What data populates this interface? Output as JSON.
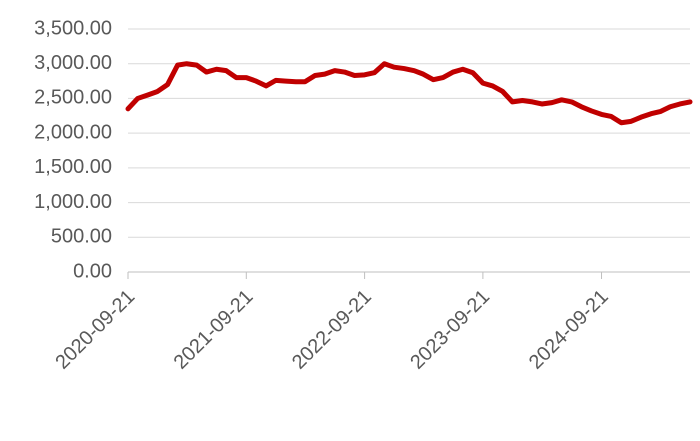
{
  "chart_data": {
    "type": "line",
    "x": [
      "2020-09-21",
      "2020-10-21",
      "2020-11-21",
      "2020-12-21",
      "2021-01-21",
      "2021-02-21",
      "2021-03-21",
      "2021-04-21",
      "2021-05-21",
      "2021-06-21",
      "2021-07-21",
      "2021-08-21",
      "2021-09-21",
      "2021-10-21",
      "2021-11-21",
      "2021-12-21",
      "2022-01-21",
      "2022-02-21",
      "2022-03-21",
      "2022-04-21",
      "2022-05-21",
      "2022-06-21",
      "2022-07-21",
      "2022-08-21",
      "2022-09-21",
      "2022-10-21",
      "2022-11-21",
      "2022-12-21",
      "2023-01-21",
      "2023-02-21",
      "2023-03-21",
      "2023-04-21",
      "2023-05-21",
      "2023-06-21",
      "2023-07-21",
      "2023-08-21",
      "2023-09-21",
      "2023-10-21",
      "2023-11-21",
      "2023-12-21",
      "2024-01-21",
      "2024-02-21",
      "2024-03-21",
      "2024-04-21",
      "2024-05-21",
      "2024-06-21",
      "2024-07-21",
      "2024-08-21",
      "2024-09-21",
      "2024-10-21",
      "2024-11-21",
      "2024-12-21",
      "2025-01-21",
      "2025-02-21",
      "2025-03-21",
      "2025-04-21",
      "2025-05-21",
      "2025-06-21"
    ],
    "series": [
      {
        "color": "#c00000",
        "values": [
          2350,
          2500,
          2550,
          2600,
          2700,
          2980,
          3000,
          2980,
          2880,
          2920,
          2900,
          2800,
          2800,
          2750,
          2680,
          2760,
          2750,
          2740,
          2740,
          2830,
          2850,
          2900,
          2880,
          2830,
          2840,
          2870,
          3000,
          2950,
          2930,
          2900,
          2850,
          2770,
          2800,
          2880,
          2920,
          2870,
          2720,
          2680,
          2600,
          2450,
          2470,
          2450,
          2420,
          2440,
          2480,
          2450,
          2380,
          2320,
          2270,
          2240,
          2150,
          2170,
          2230,
          2280,
          2310,
          2380,
          2420,
          2450
        ]
      }
    ],
    "xlim": [
      "2020-09-21",
      "2025-06-21"
    ],
    "xticks": [
      "2020-09-21",
      "2021-09-21",
      "2022-09-21",
      "2023-09-21",
      "2024-09-21"
    ],
    "ylim": [
      0,
      3500
    ],
    "yticks": [
      {
        "value": 0,
        "label": "0.00"
      },
      {
        "value": 500,
        "label": "500.00"
      },
      {
        "value": 1000,
        "label": "1,000.00"
      },
      {
        "value": 1500,
        "label": "1,500.00"
      },
      {
        "value": 2000,
        "label": "2,000.00"
      },
      {
        "value": 2500,
        "label": "2,500.00"
      },
      {
        "value": 3000,
        "label": "3,000.00"
      },
      {
        "value": 3500,
        "label": "3,500.00"
      }
    ],
    "grid": true
  }
}
